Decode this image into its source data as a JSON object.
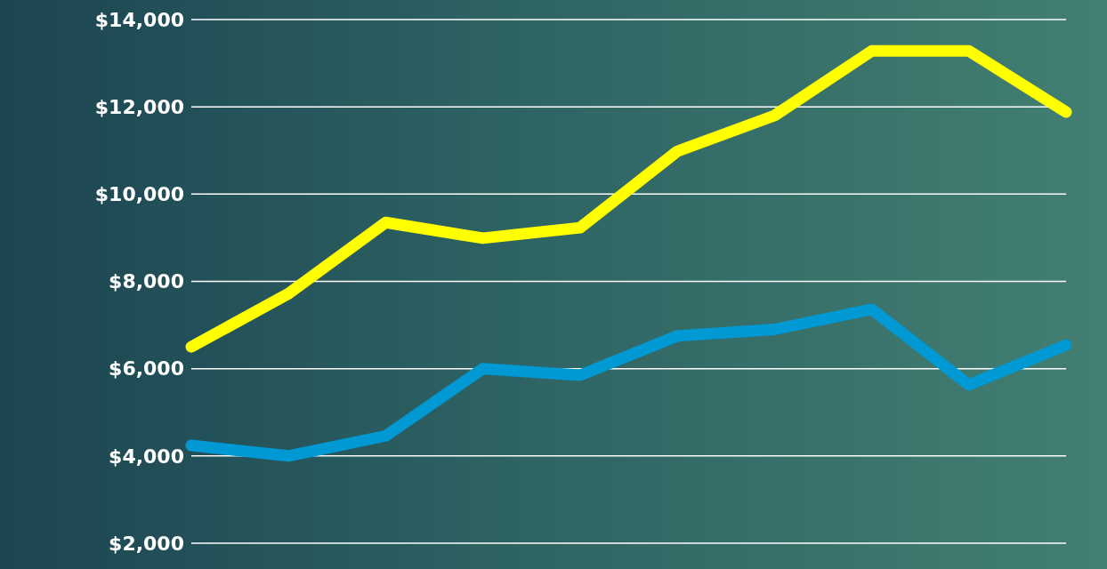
{
  "chart_data": {
    "type": "line",
    "categories": [
      null,
      null,
      null,
      null,
      null,
      null,
      null,
      null,
      null,
      null
    ],
    "series": [
      {
        "color": "#ffff00",
        "values": [
          6500,
          7720,
          9350,
          8990,
          9230,
          10980,
          11800,
          13280,
          13280,
          11880
        ]
      },
      {
        "color": "#0099d4",
        "values": [
          4240,
          4000,
          4460,
          6000,
          5850,
          6750,
          6900,
          7360,
          5630,
          6540
        ]
      }
    ],
    "ylim": [
      2000,
      14000
    ],
    "yticks": [
      {
        "value": 2000,
        "label": "$2,000"
      },
      {
        "value": 4000,
        "label": "$4,000"
      },
      {
        "value": 6000,
        "label": "$6,000"
      },
      {
        "value": 8000,
        "label": "$8,000"
      },
      {
        "value": 10000,
        "label": "$10,000"
      },
      {
        "value": 12000,
        "label": "$12,000"
      },
      {
        "value": 14000,
        "label": "$14,000"
      }
    ],
    "grid": "y",
    "marker": "none",
    "line_style": "solid",
    "tick_labels": "y"
  }
}
